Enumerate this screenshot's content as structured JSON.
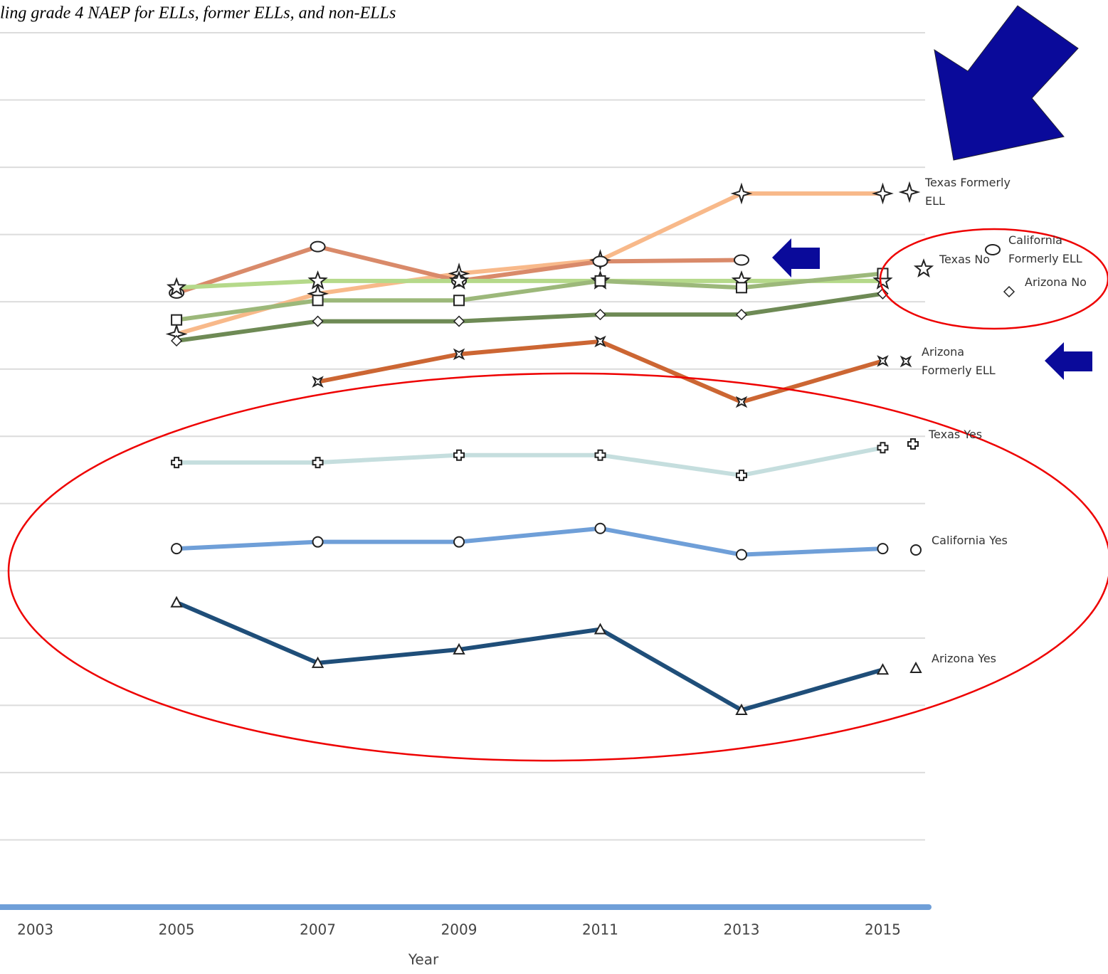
{
  "chart_data": {
    "type": "line",
    "title": "ling grade 4 NAEP for ELLs, former ELLs, and non-ELLs",
    "x_label": "Year",
    "x": [
      2005,
      2007,
      2009,
      2011,
      2013,
      2015
    ],
    "xlim": [
      2002.5,
      2015.6
    ],
    "xticks": [
      2003,
      2005,
      2007,
      2009,
      2011,
      2013,
      2015
    ],
    "ylim": [
      0,
      13
    ],
    "yticks": [
      1,
      2,
      3,
      4,
      5,
      6,
      7,
      8,
      9,
      10,
      11,
      12,
      13
    ],
    "grid": true,
    "series": [
      {
        "name": "Texas Formerly ELL",
        "color": "#f8b98a",
        "marker": "star4",
        "values": [
          8.52,
          9.12,
          9.42,
          9.62,
          10.61,
          10.61
        ]
      },
      {
        "name": "California Formerly ELL",
        "color": "#d98a6a",
        "marker": "ellipse",
        "values": [
          9.13,
          9.82,
          9.31,
          9.6,
          9.62,
          null
        ]
      },
      {
        "name": "Texas No",
        "color": "#b5d98a",
        "marker": "star",
        "values": [
          9.21,
          9.31,
          9.31,
          9.31,
          9.31,
          9.31
        ]
      },
      {
        "color": "#9cb87a",
        "marker": "square",
        "values": [
          8.73,
          9.02,
          9.02,
          9.31,
          9.21,
          9.42
        ]
      },
      {
        "name": "Arizona No",
        "color": "#6e8a55",
        "marker": "diamond",
        "values": [
          8.42,
          8.71,
          8.71,
          8.81,
          8.81,
          9.12
        ]
      },
      {
        "name": "Arizona Formerly ELL",
        "color": "#cc6633",
        "marker": "xsquare",
        "values": [
          null,
          7.81,
          8.22,
          8.41,
          7.51,
          8.12
        ]
      },
      {
        "name": "Texas Yes",
        "color": "#c5dede",
        "marker": "plus",
        "values": [
          6.61,
          6.61,
          6.72,
          6.72,
          6.42,
          6.83
        ]
      },
      {
        "name": "California Yes",
        "color": "#6f9fd8",
        "marker": "circle",
        "values": [
          5.33,
          5.43,
          5.43,
          5.63,
          5.24,
          5.33
        ]
      },
      {
        "name": "Arizona Yes",
        "color": "#1f4e79",
        "marker": "triangle",
        "values": [
          4.53,
          3.63,
          3.83,
          4.13,
          2.93,
          3.53
        ]
      }
    ]
  }
}
